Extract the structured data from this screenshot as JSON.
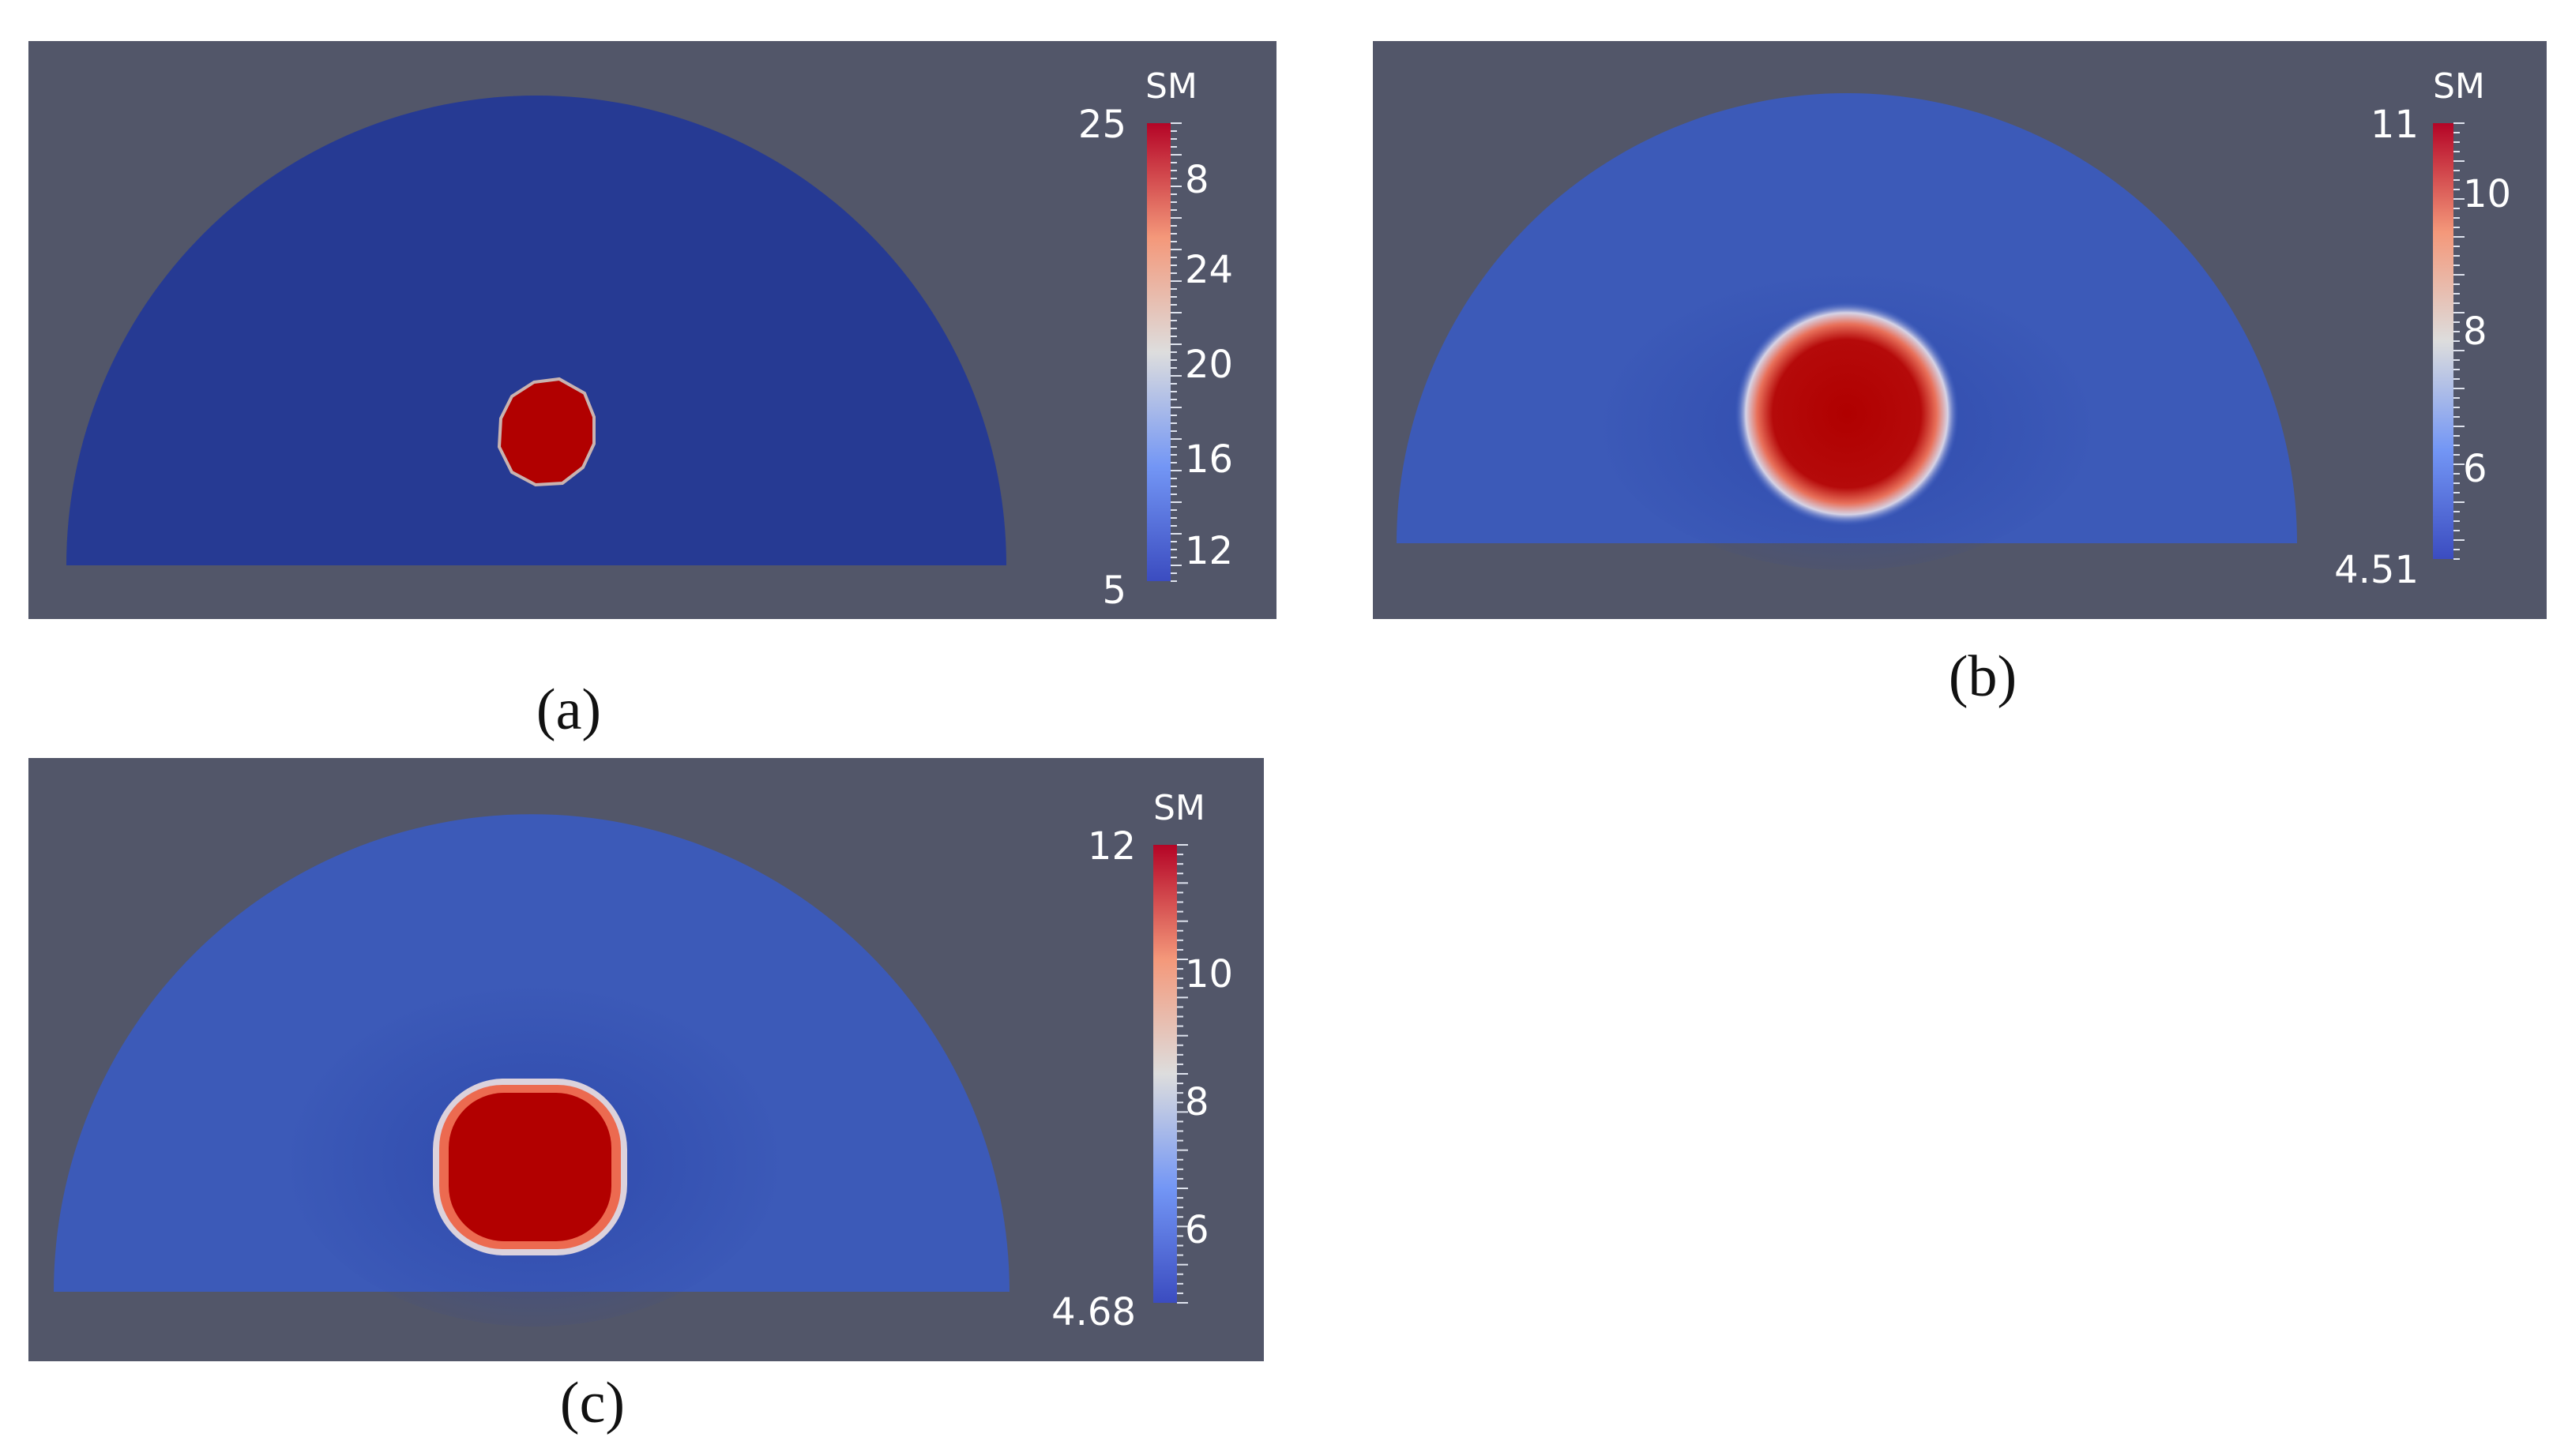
{
  "panels": [
    {
      "id": "a",
      "caption": "(a)",
      "colorbar": {
        "title": "SM",
        "min_label": "5",
        "max_label": "25",
        "min": 5,
        "max": 25,
        "ticks": [
          "8",
          "12",
          "16",
          "20",
          "24"
        ]
      }
    },
    {
      "id": "b",
      "caption": "(b)",
      "colorbar": {
        "title": "SM",
        "min_label": "4.51",
        "max_label": "11",
        "min": 4.51,
        "max": 11,
        "ticks": [
          "6",
          "8",
          "10"
        ]
      }
    },
    {
      "id": "c",
      "caption": "(c)",
      "colorbar": {
        "title": "SM",
        "min_label": "4.68",
        "max_label": "12",
        "min": 4.68,
        "max": 12,
        "ticks": [
          "6",
          "8",
          "10"
        ]
      }
    }
  ],
  "colors": {
    "background": "#525669",
    "low": "#3b4cc0",
    "mid": "#dddddd",
    "high": "#b40426",
    "inclusion": "#b40000"
  }
}
